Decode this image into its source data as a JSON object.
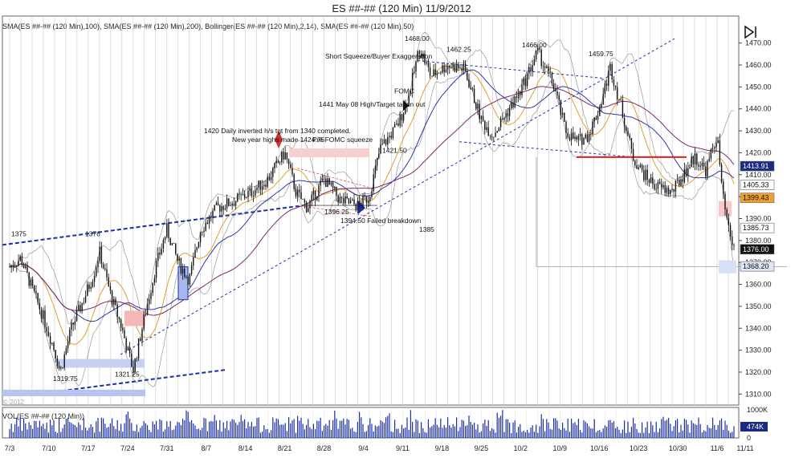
{
  "chart_data": {
    "type": "candlestick",
    "title": "ES ##-## (120 Min)  11/9/2012",
    "indicator_legend": "SMA(ES ##-## (120 Min),100), SMA(ES ##-## (120 Min),200), Bollinger(ES ##-## (120 Min),2,14), SMA(ES ##-## (120 Min),50)",
    "volume_legend": "VOL(ES ##-## (120 Min))",
    "copyright": "© 2012",
    "ylim": [
      1305,
      1475
    ],
    "y_ticks": [
      "1310.00",
      "1320.00",
      "1330.00",
      "1340.00",
      "1350.00",
      "1360.00",
      "1370.00",
      "1380.00",
      "1390.00",
      "1400.00",
      "1410.00",
      "1420.00",
      "1430.00",
      "1440.00",
      "1450.00",
      "1460.00",
      "1470.00"
    ],
    "x_labels": [
      "7/3",
      "7/10",
      "7/17",
      "7/24",
      "7/31",
      "8/7",
      "8/14",
      "8/21",
      "8/28",
      "9/4",
      "9/11",
      "9/18",
      "9/25",
      "10/2",
      "10/9",
      "10/16",
      "10/23",
      "10/30",
      "11/6",
      "11/11"
    ],
    "vol_ticks": [
      "1000K",
      "474K",
      "0"
    ],
    "price_tags": [
      {
        "label": "1413.91",
        "value": 1413.91,
        "color": "#1a2a80"
      },
      {
        "label": "1405.33",
        "value": 1405.33,
        "color": "#ffffff"
      },
      {
        "label": "1399.43",
        "value": 1399.43,
        "color": "#f0a030"
      },
      {
        "label": "1385.73",
        "value": 1385.73,
        "color": "#ffffff"
      },
      {
        "label": "1376.00",
        "value": 1376.0,
        "color": "#111111"
      },
      {
        "label": "1368.20",
        "value": 1368.2,
        "color": "#dde6f5"
      }
    ],
    "close_series": [
      {
        "d": "7/3",
        "v": 1368
      },
      {
        "d": "7/5",
        "v": 1372
      },
      {
        "d": "7/7",
        "v": 1358
      },
      {
        "d": "7/9",
        "v": 1345
      },
      {
        "d": "7/11",
        "v": 1330
      },
      {
        "d": "7/12",
        "v": 1320
      },
      {
        "d": "7/14",
        "v": 1340
      },
      {
        "d": "7/16",
        "v": 1352
      },
      {
        "d": "7/18",
        "v": 1365
      },
      {
        "d": "7/19",
        "v": 1375
      },
      {
        "d": "7/21",
        "v": 1355
      },
      {
        "d": "7/23",
        "v": 1340
      },
      {
        "d": "7/24",
        "v": 1330
      },
      {
        "d": "7/25",
        "v": 1321
      },
      {
        "d": "7/27",
        "v": 1345
      },
      {
        "d": "7/29",
        "v": 1368
      },
      {
        "d": "7/31",
        "v": 1385
      },
      {
        "d": "8/2",
        "v": 1370
      },
      {
        "d": "8/4",
        "v": 1362
      },
      {
        "d": "8/6",
        "v": 1385
      },
      {
        "d": "8/9",
        "v": 1395
      },
      {
        "d": "8/12",
        "v": 1398
      },
      {
        "d": "8/15",
        "v": 1402
      },
      {
        "d": "8/18",
        "v": 1408
      },
      {
        "d": "8/21",
        "v": 1420
      },
      {
        "d": "8/23",
        "v": 1402
      },
      {
        "d": "8/25",
        "v": 1395
      },
      {
        "d": "8/28",
        "v": 1408
      },
      {
        "d": "8/31",
        "v": 1398
      },
      {
        "d": "9/3",
        "v": 1396
      },
      {
        "d": "9/5",
        "v": 1400
      },
      {
        "d": "9/7",
        "v": 1422
      },
      {
        "d": "9/10",
        "v": 1432
      },
      {
        "d": "9/12",
        "v": 1445
      },
      {
        "d": "9/14",
        "v": 1468
      },
      {
        "d": "9/16",
        "v": 1455
      },
      {
        "d": "9/19",
        "v": 1460
      },
      {
        "d": "9/22",
        "v": 1458
      },
      {
        "d": "9/25",
        "v": 1435
      },
      {
        "d": "9/27",
        "v": 1428
      },
      {
        "d": "9/30",
        "v": 1440
      },
      {
        "d": "10/2",
        "v": 1448
      },
      {
        "d": "10/5",
        "v": 1466
      },
      {
        "d": "10/8",
        "v": 1450
      },
      {
        "d": "10/10",
        "v": 1430
      },
      {
        "d": "10/12",
        "v": 1425
      },
      {
        "d": "10/14",
        "v": 1428
      },
      {
        "d": "10/16",
        "v": 1440
      },
      {
        "d": "10/18",
        "v": 1459
      },
      {
        "d": "10/20",
        "v": 1440
      },
      {
        "d": "10/22",
        "v": 1418
      },
      {
        "d": "10/24",
        "v": 1410
      },
      {
        "d": "10/26",
        "v": 1405
      },
      {
        "d": "10/29",
        "v": 1402
      },
      {
        "d": "10/31",
        "v": 1410
      },
      {
        "d": "11/2",
        "v": 1418
      },
      {
        "d": "11/4",
        "v": 1412
      },
      {
        "d": "11/6",
        "v": 1428
      },
      {
        "d": "11/7",
        "v": 1400
      },
      {
        "d": "11/8",
        "v": 1385
      },
      {
        "d": "11/9",
        "v": 1376
      }
    ],
    "annotations": [
      {
        "text": "1375",
        "color": "#111111"
      },
      {
        "text": "1376",
        "color": "#111111"
      },
      {
        "text": "1319.75",
        "color": "#111111"
      },
      {
        "text": "1321.25",
        "color": "#111111"
      },
      {
        "text": "1420 Daily inverted h/s tgt from 1340 completed.",
        "color": "#111111"
      },
      {
        "text": "New year highs made 1424.75",
        "color": "#111111"
      },
      {
        "text": "Pre FOMC squeeze",
        "color": "#111111"
      },
      {
        "text": "1396.25",
        "color": "#111111"
      },
      {
        "text": "1394.50 Failed breakdown",
        "color": "#111111"
      },
      {
        "text": "1385",
        "color": "#111111"
      },
      {
        "text": "1421.50",
        "color": "#111111"
      },
      {
        "text": "FOMC",
        "color": "#111111"
      },
      {
        "text": "1441 May 08 High/Target taken out",
        "color": "#111111"
      },
      {
        "text": "Short Squeeze/Buyer Exaggeration",
        "color": "#111111"
      },
      {
        "text": "1468.00",
        "color": "#111111"
      },
      {
        "text": "1462.25",
        "color": "#111111"
      },
      {
        "text": "1466.00",
        "color": "#111111"
      },
      {
        "text": "1459.75",
        "color": "#111111"
      }
    ],
    "grid": true,
    "colors": {
      "up": "#111111",
      "down": "#111111",
      "volume": "#1c2fa8",
      "trend": "#1c2fa8",
      "support": "#e02020",
      "sma": "#1a2a80",
      "bollinger": "#999999"
    }
  }
}
